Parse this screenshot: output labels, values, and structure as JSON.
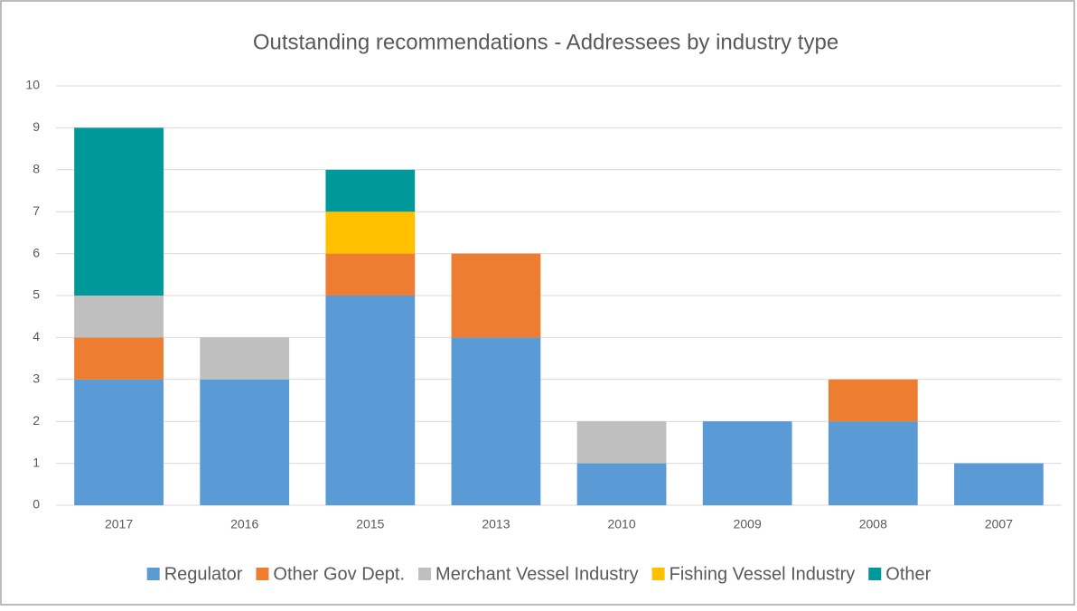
{
  "chart_data": {
    "type": "stacked_bar",
    "title": "Outstanding recommendations - Addressees by industry type",
    "categories": [
      "2017",
      "2016",
      "2015",
      "2013",
      "2010",
      "2009",
      "2008",
      "2007"
    ],
    "series": [
      {
        "name": "Regulator",
        "color": "#5b9bd5",
        "values": [
          3,
          3,
          5,
          4,
          1,
          2,
          2,
          1
        ]
      },
      {
        "name": "Other Gov Dept.",
        "color": "#ed7d31",
        "values": [
          1,
          0,
          1,
          2,
          0,
          0,
          1,
          0
        ]
      },
      {
        "name": "Merchant Vessel Industry",
        "color": "#bfbfbf",
        "values": [
          1,
          1,
          0,
          0,
          1,
          0,
          0,
          0
        ]
      },
      {
        "name": "Fishing Vessel Industry",
        "color": "#ffc000",
        "values": [
          0,
          0,
          1,
          0,
          0,
          0,
          0,
          0
        ]
      },
      {
        "name": "Other",
        "color": "#009999",
        "values": [
          4,
          0,
          1,
          0,
          0,
          0,
          0,
          0
        ]
      }
    ],
    "ylim": [
      0,
      10
    ],
    "yticks": [
      0,
      1,
      2,
      3,
      4,
      5,
      6,
      7,
      8,
      9,
      10
    ],
    "grid": true,
    "legend": "bottom"
  }
}
